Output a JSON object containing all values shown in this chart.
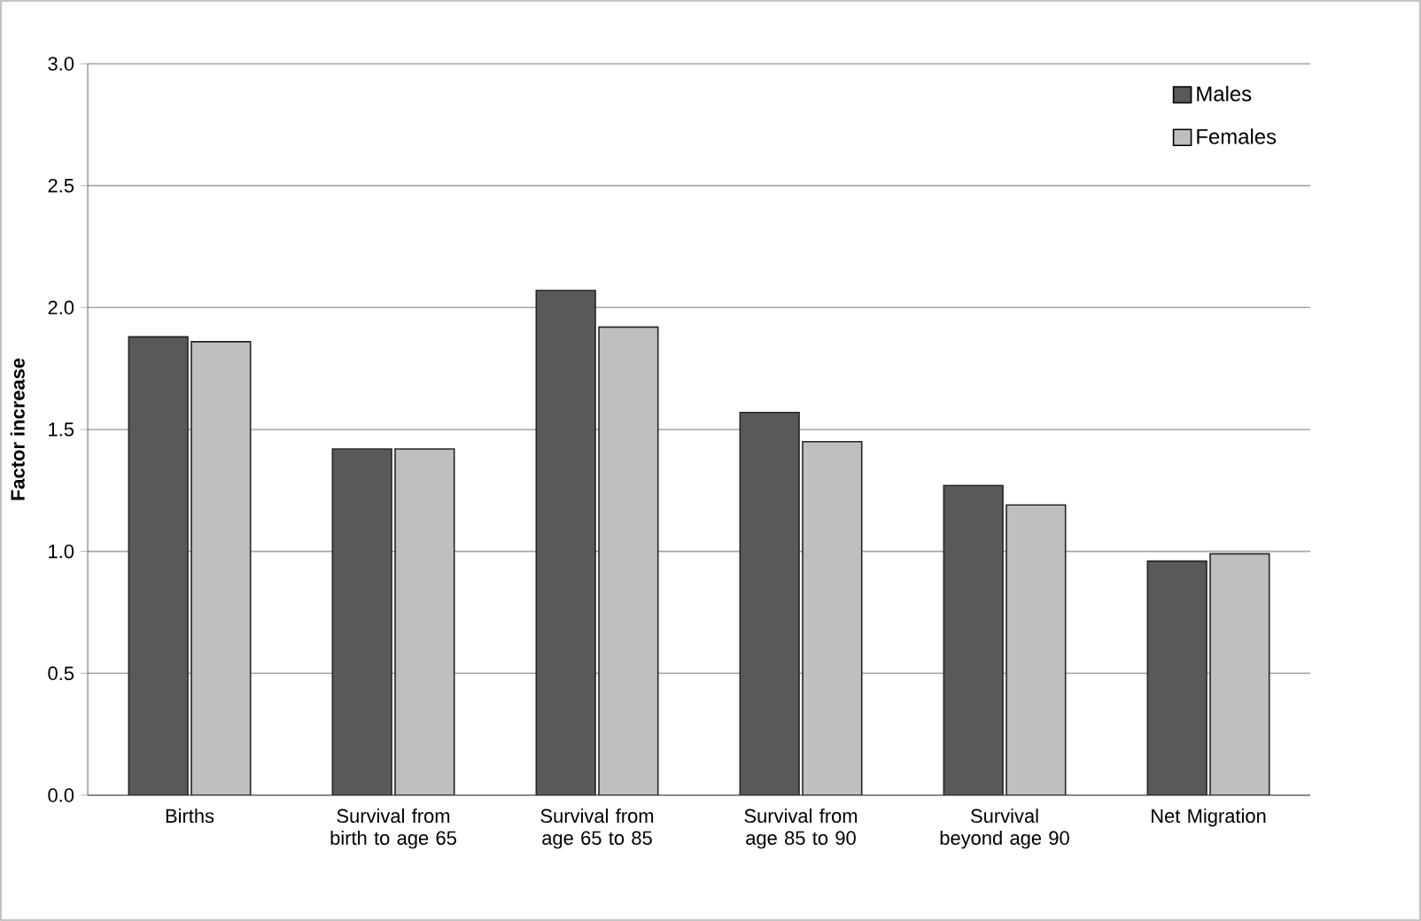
{
  "chart_data": {
    "type": "bar",
    "ylabel": "Factor increase",
    "categories": [
      "Births",
      "Survival from birth to age 65",
      "Survival from age 65 to 85",
      "Survival from age 85 to 90",
      "Survival beyond age 90",
      "Net Migration"
    ],
    "series": [
      {
        "name": "Males",
        "color": "#595959",
        "values": [
          1.88,
          1.42,
          2.07,
          1.57,
          1.27,
          0.96
        ]
      },
      {
        "name": "Females",
        "color": "#bfbfbf",
        "values": [
          1.86,
          1.42,
          1.92,
          1.45,
          1.19,
          0.99
        ]
      }
    ],
    "ylim": [
      0,
      3
    ],
    "yticks": [
      {
        "value": 0,
        "label": "0.0"
      },
      {
        "value": 0.5,
        "label": "0.5"
      },
      {
        "value": 1,
        "label": "1.0"
      },
      {
        "value": 1.5,
        "label": "1.5"
      },
      {
        "value": 2,
        "label": "2.0"
      },
      {
        "value": 2.5,
        "label": "2.5"
      },
      {
        "value": 3,
        "label": "3.0"
      }
    ],
    "grid": "y",
    "legend": "top right"
  }
}
